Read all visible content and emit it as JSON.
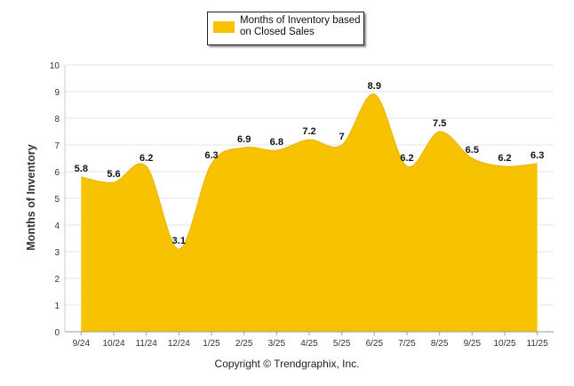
{
  "chart_data": {
    "type": "area",
    "categories": [
      "9/24",
      "10/24",
      "11/24",
      "12/24",
      "1/25",
      "2/25",
      "3/25",
      "4/25",
      "5/25",
      "6/25",
      "7/25",
      "8/25",
      "9/25",
      "10/25",
      "11/25"
    ],
    "series": [
      {
        "name": "Months of Inventory based on Closed Sales",
        "values": [
          5.8,
          5.6,
          6.2,
          3.1,
          6.3,
          6.9,
          6.8,
          7.2,
          7,
          8.9,
          6.2,
          7.5,
          6.5,
          6.2,
          6.3
        ],
        "labels": [
          "5.8",
          "5.6",
          "6.2",
          "3.1",
          "6.3",
          "6.9",
          "6.8",
          "7.2",
          "7",
          "8.9",
          "6.2",
          "7.5",
          "6.5",
          "6.2",
          "6.3"
        ]
      }
    ],
    "ylabel": "Months of Inventory",
    "xlabel": "",
    "ylim": [
      0,
      10
    ],
    "yticks": [
      0,
      1,
      2,
      3,
      4,
      5,
      6,
      7,
      8,
      9,
      10
    ],
    "grid": true,
    "legend_position": "top-center",
    "colors": {
      "fill": "#F7C200",
      "grid": "#e6e6e6",
      "axis": "#999999"
    }
  },
  "footer": {
    "copyright": "Copyright © Trendgraphix, Inc."
  }
}
